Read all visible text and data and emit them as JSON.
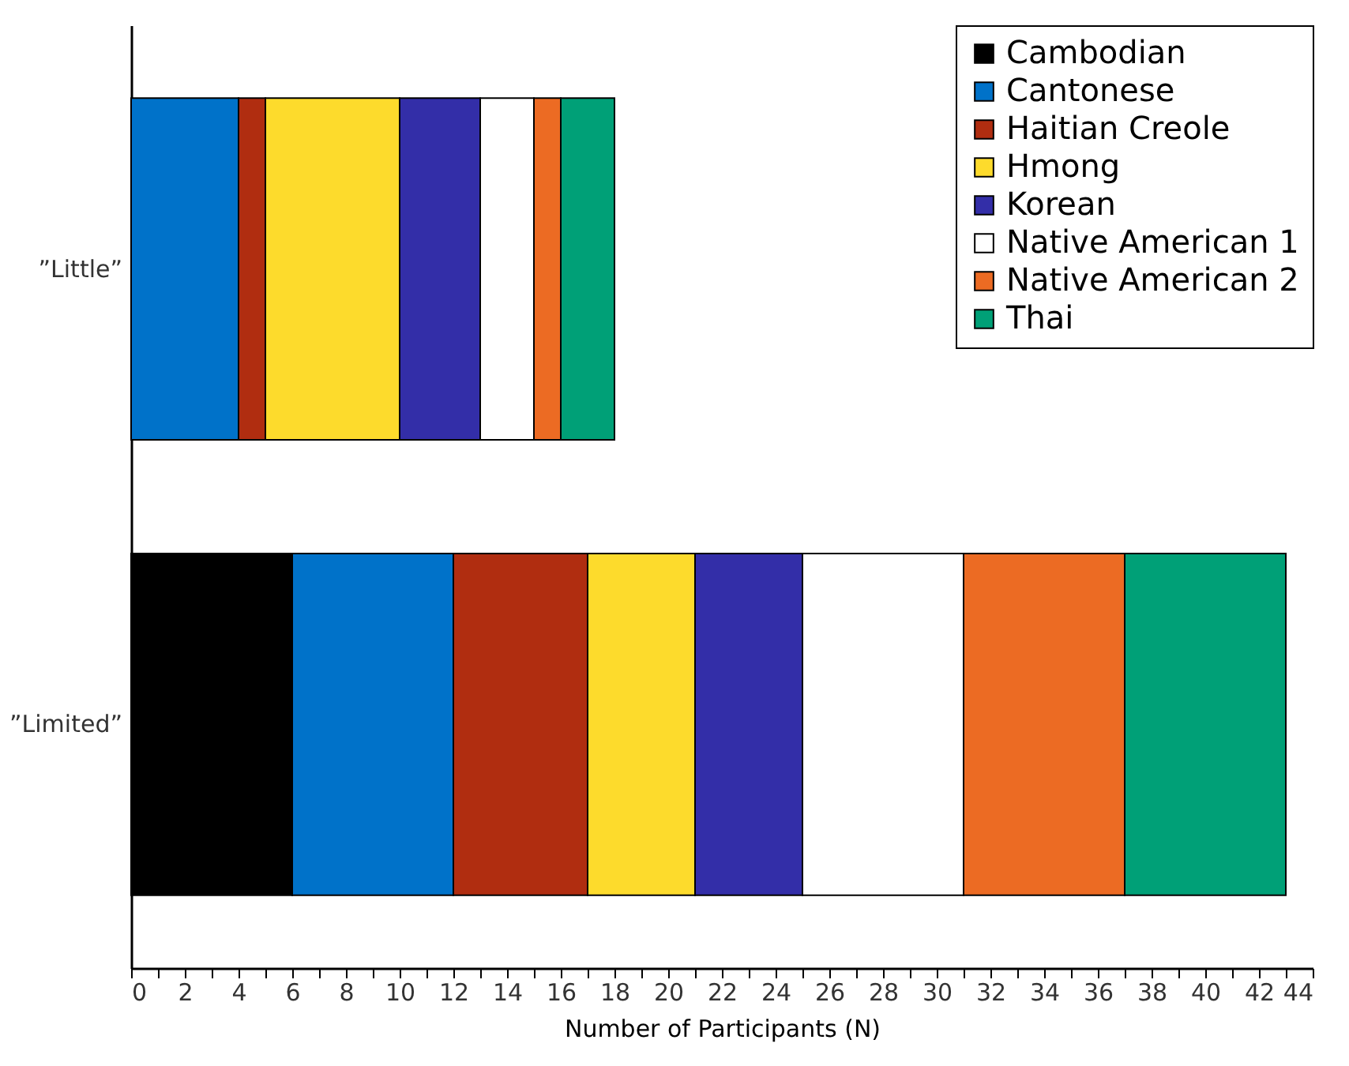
{
  "chart_data": {
    "type": "bar",
    "orientation": "horizontal",
    "stacked": true,
    "xlabel": "Number of Participants (N)",
    "categories": [
      "”Little”",
      "”Limited”"
    ],
    "series": [
      {
        "name": "Cambodian",
        "color": "#000000",
        "values": [
          null,
          6
        ]
      },
      {
        "name": "Cantonese",
        "color": "#0072c9",
        "values": [
          4,
          6
        ]
      },
      {
        "name": "Haitian Creole",
        "color": "#b02d10",
        "values": [
          1,
          5
        ]
      },
      {
        "name": "Hmong",
        "color": "#fddb2c",
        "values": [
          5,
          4
        ]
      },
      {
        "name": "Korean",
        "color": "#332ea8",
        "values": [
          3,
          4
        ]
      },
      {
        "name": "Native American 1",
        "color": "#ffffff",
        "values": [
          2,
          6
        ]
      },
      {
        "name": "Native American 2",
        "color": "#ec6b23",
        "values": [
          1,
          6
        ]
      },
      {
        "name": "Thai",
        "color": "#00a077",
        "values": [
          2,
          6
        ]
      }
    ],
    "xlim": [
      0,
      44
    ],
    "xticks": [
      0,
      {
        "value": 1,
        "label": null
      },
      2,
      {
        "value": 3,
        "label": null
      },
      4,
      {
        "value": 5,
        "label": null
      },
      6,
      {
        "value": 7,
        "label": null
      },
      8,
      {
        "value": 9,
        "label": null
      },
      10,
      {
        "value": 11,
        "label": null
      },
      12,
      {
        "value": 13,
        "label": null
      },
      14,
      {
        "value": 15,
        "label": null
      },
      16,
      {
        "value": 17,
        "label": null
      },
      18,
      {
        "value": 19,
        "label": null
      },
      20,
      {
        "value": 21,
        "label": null
      },
      22,
      {
        "value": 23,
        "label": null
      },
      24,
      {
        "value": 25,
        "label": null
      },
      26,
      {
        "value": 27,
        "label": null
      },
      28,
      {
        "value": 29,
        "label": null
      },
      30,
      {
        "value": 31,
        "label": null
      },
      32,
      {
        "value": 33,
        "label": null
      },
      34,
      {
        "value": 35,
        "label": null
      },
      36,
      {
        "value": 37,
        "label": null
      },
      38,
      {
        "value": 39,
        "label": null
      },
      40,
      {
        "value": 41,
        "label": null
      },
      42,
      {
        "value": 43,
        "label": null
      },
      44
    ],
    "grid": false,
    "legend": "top right"
  }
}
